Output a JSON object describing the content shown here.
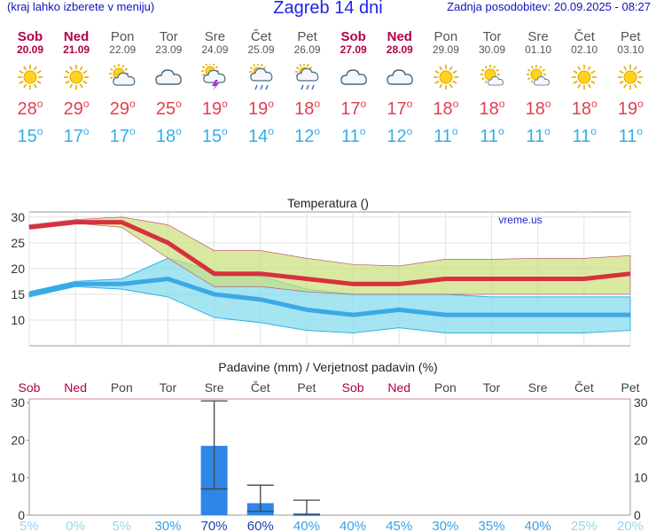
{
  "header": {
    "left_note": "(kraj lahko izberete v meniju)",
    "title": "Zagreb 14 dni",
    "updated": "Zadnja posodobitev: 20.09.2025 - 08:27"
  },
  "colors": {
    "weekend": "#b0004a",
    "weekday": "#555555",
    "max_temp": "#e04050",
    "min_temp": "#35aee8",
    "rain_bar": "#2f86e6",
    "max_band": "#c9e07a",
    "min_band": "#86dcec"
  },
  "days": [
    {
      "name": "Sob",
      "date": "20.09",
      "weekend": true,
      "icon": "sun-icon",
      "max": "28",
      "min": "15"
    },
    {
      "name": "Ned",
      "date": "21.09",
      "weekend": true,
      "icon": "sun-icon",
      "max": "29",
      "min": "17"
    },
    {
      "name": "Pon",
      "date": "22.09",
      "weekend": false,
      "icon": "sun-cloud-icon",
      "max": "29",
      "min": "17"
    },
    {
      "name": "Tor",
      "date": "23.09",
      "weekend": false,
      "icon": "cloud-icon",
      "max": "25",
      "min": "18"
    },
    {
      "name": "Sre",
      "date": "24.09",
      "weekend": false,
      "icon": "thunderstorm-icon",
      "max": "19",
      "min": "15"
    },
    {
      "name": "Čet",
      "date": "25.09",
      "weekend": false,
      "icon": "sun-cloud-rain-icon",
      "max": "19",
      "min": "14"
    },
    {
      "name": "Pet",
      "date": "26.09",
      "weekend": false,
      "icon": "sun-cloud-rain-icon",
      "max": "18",
      "min": "12"
    },
    {
      "name": "Sob",
      "date": "27.09",
      "weekend": true,
      "icon": "cloud-icon",
      "max": "17",
      "min": "11"
    },
    {
      "name": "Ned",
      "date": "28.09",
      "weekend": true,
      "icon": "cloud-icon",
      "max": "17",
      "min": "12"
    },
    {
      "name": "Pon",
      "date": "29.09",
      "weekend": false,
      "icon": "sun-icon",
      "max": "18",
      "min": "11"
    },
    {
      "name": "Tor",
      "date": "30.09",
      "weekend": false,
      "icon": "sun-small-cloud-icon",
      "max": "18",
      "min": "11"
    },
    {
      "name": "Sre",
      "date": "01.10",
      "weekend": false,
      "icon": "sun-small-cloud-icon",
      "max": "18",
      "min": "11"
    },
    {
      "name": "Čet",
      "date": "02.10",
      "weekend": false,
      "icon": "sun-icon",
      "max": "18",
      "min": "11"
    },
    {
      "name": "Pet",
      "date": "03.10",
      "weekend": false,
      "icon": "sun-icon",
      "max": "19",
      "min": "11"
    }
  ],
  "chart_data": [
    {
      "type": "line",
      "title": "Temperatura (°C)",
      "watermark": "vreme.us",
      "ylim": [
        5,
        31
      ],
      "yticks": [
        10,
        15,
        20,
        25,
        30
      ],
      "grid": true,
      "categories": [
        "20.09",
        "21.09",
        "22.09",
        "23.09",
        "24.09",
        "25.09",
        "26.09",
        "27.09",
        "28.09",
        "29.09",
        "30.09",
        "01.10",
        "02.10",
        "03.10"
      ],
      "series": [
        {
          "role": "max",
          "values": [
            28,
            29,
            29,
            25,
            19,
            19,
            18,
            17,
            17,
            18,
            18,
            18,
            18,
            19
          ]
        },
        {
          "role": "min",
          "values": [
            15,
            17,
            17,
            18,
            15,
            14,
            12,
            11,
            12,
            11,
            11,
            11,
            11,
            11
          ]
        },
        {
          "role": "max_upper",
          "values": [
            28.5,
            29.5,
            30,
            28.5,
            23.5,
            23.5,
            22,
            20.8,
            20.5,
            21.8,
            21.8,
            22,
            22,
            22.5
          ]
        },
        {
          "role": "max_lower",
          "values": [
            27.8,
            28.8,
            28,
            22,
            16.5,
            16.5,
            15.5,
            15,
            15,
            15,
            15,
            15,
            15,
            15
          ]
        },
        {
          "role": "min_upper",
          "values": [
            15.5,
            17.5,
            18,
            22,
            19.5,
            18.5,
            16,
            15,
            15,
            15,
            14.5,
            14.5,
            14.5,
            14.5
          ]
        },
        {
          "role": "min_lower",
          "values": [
            14.5,
            16.5,
            16,
            14.5,
            10.5,
            9.5,
            8,
            7.5,
            8.5,
            7.5,
            7.5,
            7.5,
            7.5,
            8
          ]
        }
      ]
    },
    {
      "type": "bar",
      "title": "Padavine (mm) / Verjetnost padavin (%)",
      "ylim": [
        0,
        31
      ],
      "yticks": [
        0,
        10,
        20,
        30
      ],
      "categories": [
        "Sob",
        "Ned",
        "Pon",
        "Tor",
        "Sre",
        "Čet",
        "Pet",
        "Sob",
        "Ned",
        "Pon",
        "Tor",
        "Sre",
        "Čet",
        "Pet"
      ],
      "values": [
        0,
        0,
        0,
        0,
        18.5,
        3.2,
        0.5,
        0,
        0,
        0,
        0,
        0,
        0,
        0
      ],
      "error_ranges": [
        null,
        null,
        null,
        null,
        [
          7,
          30.5
        ],
        [
          1,
          8
        ],
        [
          0,
          4
        ],
        null,
        null,
        null,
        null,
        null,
        null,
        null
      ],
      "probability": [
        "5%",
        "0%",
        "5%",
        "30%",
        "70%",
        "60%",
        "40%",
        "40%",
        "45%",
        "30%",
        "35%",
        "40%",
        "25%",
        "20%"
      ]
    }
  ]
}
